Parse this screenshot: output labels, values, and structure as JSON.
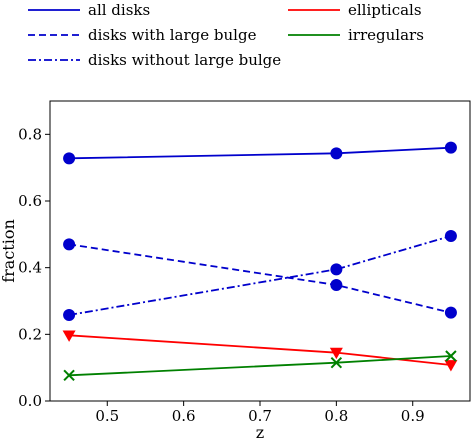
{
  "chart_data": {
    "type": "line",
    "xlabel": "z",
    "ylabel": "fraction",
    "xlim": [
      0.425,
      0.975
    ],
    "ylim": [
      0.0,
      0.9
    ],
    "xticks": [
      0.5,
      0.6,
      0.7,
      0.8,
      0.9
    ],
    "yticks": [
      0.0,
      0.2,
      0.4,
      0.6,
      0.8
    ],
    "x": [
      0.45,
      0.8,
      0.95
    ],
    "grid": false,
    "legend_placement": "top, above plot, two columns",
    "series": [
      {
        "name": "all disks",
        "values": [
          0.728,
          0.743,
          0.76
        ],
        "color": "#0000cc",
        "dash": "solid",
        "marker": "circle"
      },
      {
        "name": "disks with large bulge",
        "values": [
          0.47,
          0.348,
          0.265
        ],
        "color": "#0000cc",
        "dash": "dashed",
        "marker": "circle"
      },
      {
        "name": "disks without large bulge",
        "values": [
          0.258,
          0.395,
          0.495
        ],
        "color": "#0000cc",
        "dash": "dashdot",
        "marker": "circle"
      },
      {
        "name": "ellipticals",
        "values": [
          0.197,
          0.145,
          0.108
        ],
        "color": "#ff0000",
        "dash": "solid",
        "marker": "triangle-down"
      },
      {
        "name": "irregulars",
        "values": [
          0.077,
          0.115,
          0.135
        ],
        "color": "#008000",
        "dash": "solid",
        "marker": "x"
      }
    ]
  }
}
